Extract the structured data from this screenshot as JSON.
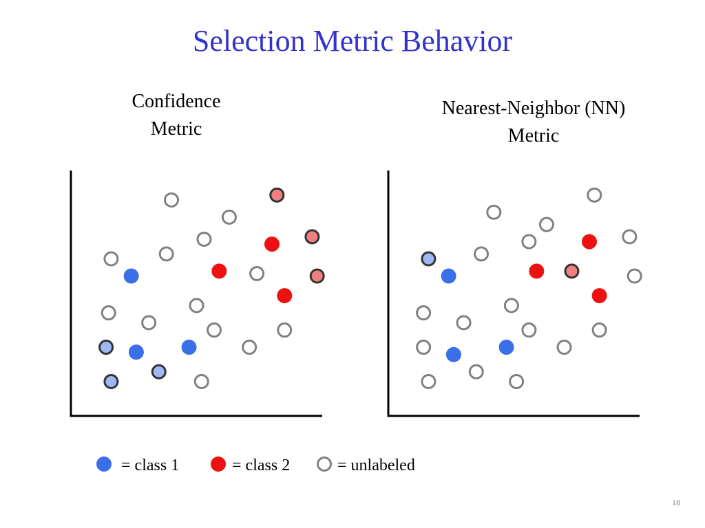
{
  "title": "Selection Metric Behavior",
  "panels": [
    {
      "id": "confidence",
      "title_lines": [
        "Confidence",
        "Metric"
      ],
      "points": [
        {
          "cls": "unlabeled",
          "x": 40,
          "y": 88
        },
        {
          "cls": "unlabeled",
          "x": 63,
          "y": 81
        },
        {
          "cls": "unlabeled",
          "x": 53,
          "y": 72
        },
        {
          "cls": "unlabeled",
          "x": 16,
          "y": 64
        },
        {
          "cls": "unlabeled",
          "x": 38,
          "y": 66
        },
        {
          "cls": "unlabeled",
          "x": 74,
          "y": 58
        },
        {
          "cls": "unlabeled",
          "x": 50,
          "y": 45
        },
        {
          "cls": "unlabeled",
          "x": 15,
          "y": 42
        },
        {
          "cls": "unlabeled",
          "x": 31,
          "y": 38
        },
        {
          "cls": "unlabeled",
          "x": 57,
          "y": 35
        },
        {
          "cls": "unlabeled",
          "x": 85,
          "y": 35
        },
        {
          "cls": "unlabeled",
          "x": 71,
          "y": 28
        },
        {
          "cls": "unlabeled",
          "x": 52,
          "y": 14
        },
        {
          "cls": "class1",
          "x": 24,
          "y": 57
        },
        {
          "cls": "class1",
          "x": 26,
          "y": 26
        },
        {
          "cls": "class1",
          "x": 47,
          "y": 28
        },
        {
          "cls": "class2",
          "x": 80,
          "y": 70
        },
        {
          "cls": "class2",
          "x": 59,
          "y": 59
        },
        {
          "cls": "class2",
          "x": 85,
          "y": 49
        },
        {
          "cls": "selected1",
          "x": 14,
          "y": 28
        },
        {
          "cls": "selected1",
          "x": 35,
          "y": 18
        },
        {
          "cls": "selected1",
          "x": 16,
          "y": 14
        },
        {
          "cls": "selected2",
          "x": 82,
          "y": 90
        },
        {
          "cls": "selected2",
          "x": 96,
          "y": 73
        },
        {
          "cls": "selected2",
          "x": 98,
          "y": 57
        }
      ]
    },
    {
      "id": "nn",
      "title_lines": [
        "Nearest-Neighbor (NN)",
        "Metric"
      ],
      "points": [
        {
          "cls": "unlabeled",
          "x": 82,
          "y": 90
        },
        {
          "cls": "unlabeled",
          "x": 42,
          "y": 83
        },
        {
          "cls": "unlabeled",
          "x": 63,
          "y": 78
        },
        {
          "cls": "unlabeled",
          "x": 56,
          "y": 71
        },
        {
          "cls": "unlabeled",
          "x": 96,
          "y": 73
        },
        {
          "cls": "unlabeled",
          "x": 37,
          "y": 66
        },
        {
          "cls": "unlabeled",
          "x": 98,
          "y": 57
        },
        {
          "cls": "unlabeled",
          "x": 49,
          "y": 45
        },
        {
          "cls": "unlabeled",
          "x": 14,
          "y": 42
        },
        {
          "cls": "unlabeled",
          "x": 30,
          "y": 38
        },
        {
          "cls": "unlabeled",
          "x": 56,
          "y": 35
        },
        {
          "cls": "unlabeled",
          "x": 84,
          "y": 35
        },
        {
          "cls": "unlabeled",
          "x": 14,
          "y": 28
        },
        {
          "cls": "unlabeled",
          "x": 70,
          "y": 28
        },
        {
          "cls": "unlabeled",
          "x": 35,
          "y": 18
        },
        {
          "cls": "unlabeled",
          "x": 16,
          "y": 14
        },
        {
          "cls": "unlabeled",
          "x": 51,
          "y": 14
        },
        {
          "cls": "class1",
          "x": 24,
          "y": 57
        },
        {
          "cls": "class1",
          "x": 26,
          "y": 25
        },
        {
          "cls": "class1",
          "x": 47,
          "y": 28
        },
        {
          "cls": "class2",
          "x": 80,
          "y": 71
        },
        {
          "cls": "class2",
          "x": 59,
          "y": 59
        },
        {
          "cls": "class2",
          "x": 84,
          "y": 49
        },
        {
          "cls": "selected1",
          "x": 16,
          "y": 64
        },
        {
          "cls": "selected2",
          "x": 73,
          "y": 59
        }
      ]
    }
  ],
  "legend": [
    {
      "cls": "class1",
      "label": "= class 1"
    },
    {
      "cls": "class2",
      "label": "= class 2"
    },
    {
      "cls": "unlabeled",
      "label": "= unlabeled"
    }
  ],
  "colors": {
    "class1": "#3a6fe8",
    "class2": "#ee1111",
    "selected1_fill": "#9db8f2",
    "selected2_fill": "#f08080",
    "selected_stroke": "#333333",
    "unlabeled_stroke": "#808080",
    "axis": "#000000"
  },
  "page_number": "18"
}
